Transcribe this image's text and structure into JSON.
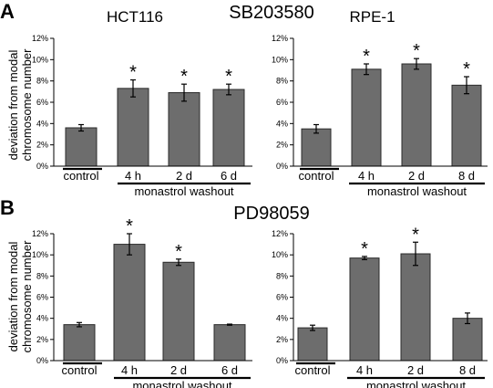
{
  "figure": {
    "panel_a": {
      "letter": "A",
      "drug": "SB203580"
    },
    "panel_b": {
      "letter": "B",
      "drug": "PD98059"
    },
    "ylabel_line1": "deviation from modal",
    "ylabel_line2": "chromosome number"
  },
  "chart_data": [
    {
      "type": "bar",
      "title": "HCT116",
      "categories": [
        "control",
        "4 h",
        "2 d",
        "6 d"
      ],
      "group_label": "monastrol washout",
      "ylabel": "deviation from modal chromosome number",
      "ylim": [
        0,
        12
      ],
      "yticks": [
        "0%",
        "2%",
        "4%",
        "6%",
        "8%",
        "10%",
        "12%"
      ],
      "values": [
        3.6,
        7.3,
        6.9,
        7.2
      ],
      "errors": [
        0.3,
        0.8,
        0.8,
        0.5
      ],
      "significant": [
        false,
        true,
        true,
        true
      ],
      "significance_marker": "*"
    },
    {
      "type": "bar",
      "title": "RPE-1",
      "categories": [
        "control",
        "4 h",
        "2 d",
        "8 d"
      ],
      "group_label": "monastrol washout",
      "ylabel": "",
      "ylim": [
        0,
        12
      ],
      "yticks": [
        "0%",
        "2%",
        "4%",
        "6%",
        "8%",
        "10%",
        "12%"
      ],
      "values": [
        3.5,
        9.1,
        9.6,
        7.6
      ],
      "errors": [
        0.4,
        0.5,
        0.5,
        0.8
      ],
      "significant": [
        false,
        true,
        true,
        true
      ],
      "significance_marker": "*"
    },
    {
      "type": "bar",
      "title": "",
      "categories": [
        "control",
        "4 h",
        "2 d",
        "6 d"
      ],
      "group_label": "monastrol washout",
      "ylabel": "deviation from modal chromosome number",
      "ylim": [
        0,
        12
      ],
      "yticks": [
        "0%",
        "2%",
        "4%",
        "6%",
        "8%",
        "10%",
        "12%"
      ],
      "values": [
        3.4,
        11.0,
        9.3,
        3.4
      ],
      "errors": [
        0.2,
        1.0,
        0.3,
        0.05
      ],
      "significant": [
        false,
        true,
        true,
        false
      ],
      "significance_marker": "*"
    },
    {
      "type": "bar",
      "title": "",
      "categories": [
        "control",
        "4 h",
        "2 d",
        "8 d"
      ],
      "group_label": "monastrol washout",
      "ylabel": "",
      "ylim": [
        0,
        12
      ],
      "yticks": [
        "0%",
        "2%",
        "4%",
        "6%",
        "8%",
        "10%",
        "12%"
      ],
      "values": [
        3.1,
        9.7,
        10.1,
        4.0
      ],
      "errors": [
        0.25,
        0.15,
        1.1,
        0.5
      ],
      "significant": [
        false,
        true,
        true,
        false
      ],
      "significance_marker": "*"
    }
  ]
}
